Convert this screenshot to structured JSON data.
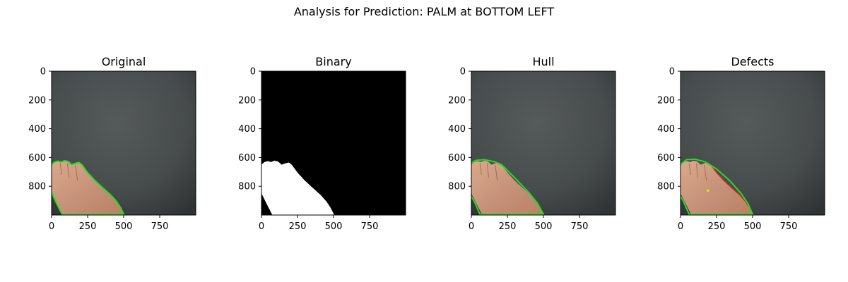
{
  "figure": {
    "suptitle": "Analysis for Prediction: PALM at BOTTOM LEFT"
  },
  "colors": {
    "board_dark": "#3f4444",
    "board_mid": "#4d5252",
    "skin_light": "#d9aa8c",
    "skin_dark": "#b98062",
    "contour": "#22dd22",
    "hull": "#22dd22",
    "defect": "#dd2222",
    "mask_bg": "#000000",
    "mask_fg": "#ffffff"
  },
  "chart_data": [
    {
      "type": "image",
      "title": "Original",
      "xlim": [
        0,
        1000
      ],
      "ylim": [
        1000,
        0
      ],
      "xticks": [
        0,
        250,
        500,
        750
      ],
      "yticks": [
        0,
        200,
        400,
        600,
        800
      ],
      "overlay": "contour"
    },
    {
      "type": "image",
      "title": "Binary",
      "xlim": [
        0,
        1000
      ],
      "ylim": [
        1000,
        0
      ],
      "xticks": [
        0,
        250,
        500,
        750
      ],
      "yticks": [
        0,
        200,
        400,
        600,
        800
      ],
      "overlay": "mask"
    },
    {
      "type": "image",
      "title": "Hull",
      "xlim": [
        0,
        1000
      ],
      "ylim": [
        1000,
        0
      ],
      "xticks": [
        0,
        250,
        500,
        750
      ],
      "yticks": [
        0,
        200,
        400,
        600,
        800
      ],
      "overlay": "hull"
    },
    {
      "type": "image",
      "title": "Defects",
      "xlim": [
        0,
        1000
      ],
      "ylim": [
        1000,
        0
      ],
      "xticks": [
        0,
        250,
        500,
        750
      ],
      "yticks": [
        0,
        200,
        400,
        600,
        800
      ],
      "overlay": "defects"
    }
  ]
}
